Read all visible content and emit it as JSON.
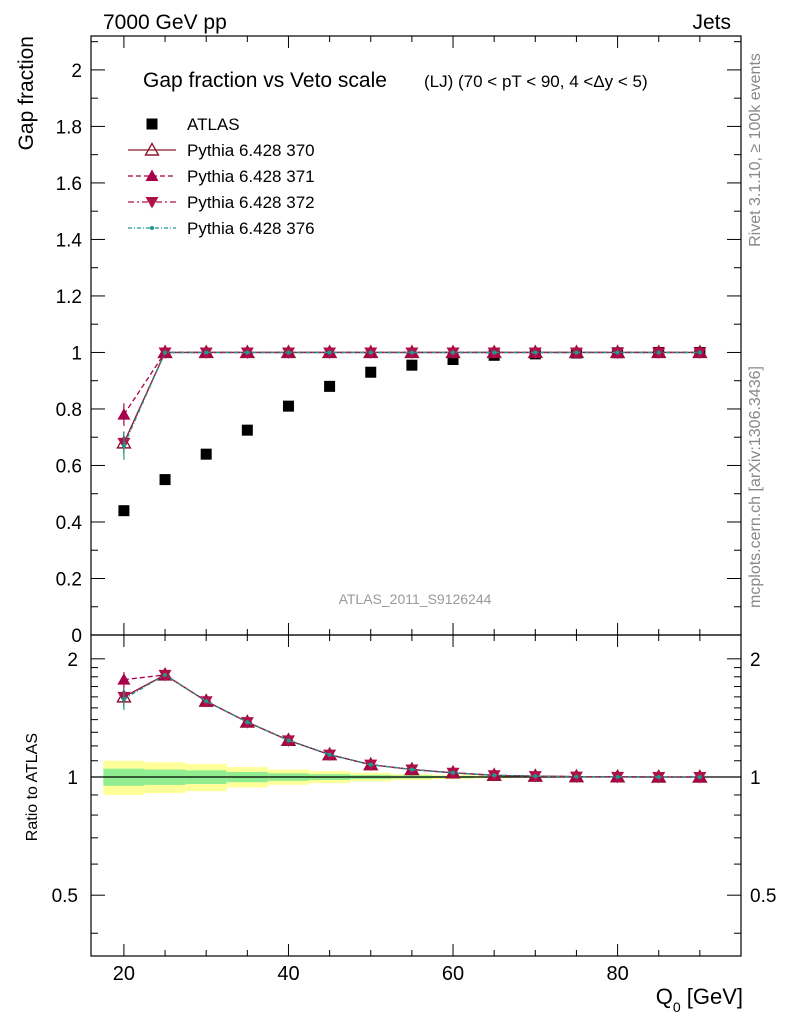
{
  "header": {
    "left": "7000 GeV pp",
    "right": "Jets",
    "side_top": "Rivet 3.1.10, ≥ 100k events",
    "side_bottom": "mcplots.cern.ch [arXiv:1306.3436]"
  },
  "chart_data": {
    "type": "scatter",
    "title": "Gap fraction vs Veto scale",
    "subtitle": "(LJ) (70 < pT <  90, 4 <Δy < 5)",
    "watermark": "ATLAS_2011_S9126244",
    "xlabel": "Q0 [GeV]",
    "ylabel": "Gap fraction",
    "ratio_ylabel": "Ratio to ATLAS",
    "xlim": [
      16,
      95
    ],
    "ylim": [
      0,
      2.12
    ],
    "ratio_ylim": [
      0.35,
      2.3
    ],
    "x_ticks": [
      20,
      40,
      60,
      80
    ],
    "y_ticks": [
      0,
      0.2,
      0.4,
      0.6,
      0.8,
      1,
      1.2,
      1.4,
      1.6,
      1.8,
      2
    ],
    "y_tick_labels": [
      "0",
      "0.2",
      "0.4",
      "0.6",
      "0.8",
      "1",
      "1.2",
      "1.4",
      "1.6",
      "1.8",
      "2"
    ],
    "ratio_ticks": [
      0.5,
      1,
      2
    ],
    "ratio_tick_labels": [
      "0.5",
      "1",
      "2"
    ],
    "x": [
      20,
      25,
      30,
      35,
      40,
      45,
      50,
      55,
      60,
      65,
      70,
      75,
      80,
      85,
      90
    ],
    "legend_position": "top-left",
    "series": [
      {
        "name": "ATLAS",
        "marker": "square",
        "color": "#000000",
        "values": [
          0.44,
          0.55,
          0.64,
          0.725,
          0.81,
          0.88,
          0.93,
          0.955,
          0.975,
          0.99,
          0.995,
          0.998,
          0.999,
          1.0,
          1.0
        ]
      },
      {
        "name": "Pythia 6.428 370",
        "marker": "triangle-open",
        "color": "#8b1a2e",
        "dash": "",
        "values": [
          0.68,
          1.0,
          1.0,
          1.0,
          1.0,
          1.0,
          1.0,
          1.0,
          1.0,
          1.0,
          1.0,
          1.0,
          1.0,
          1.0,
          1.0
        ],
        "errors": [
          0.04,
          0,
          0,
          0,
          0,
          0,
          0,
          0,
          0,
          0,
          0,
          0,
          0,
          0,
          0
        ],
        "ratio": [
          1.6,
          1.82,
          1.56,
          1.38,
          1.24,
          1.14,
          1.075,
          1.045,
          1.025,
          1.01,
          1.005,
          1.002,
          1.001,
          1.0,
          1.0
        ],
        "ratio_errors": [
          0.09,
          0,
          0,
          0,
          0,
          0,
          0,
          0,
          0,
          0,
          0,
          0,
          0,
          0,
          0
        ]
      },
      {
        "name": "Pythia 6.428 371",
        "marker": "triangle-up",
        "color": "#a8004a",
        "dash": "5,3",
        "values": [
          0.78,
          1.0,
          1.0,
          1.0,
          1.0,
          1.0,
          1.0,
          1.0,
          1.0,
          1.0,
          1.0,
          1.0,
          1.0,
          1.0,
          1.0
        ],
        "errors": [
          0.04,
          0,
          0,
          0,
          0,
          0,
          0,
          0,
          0,
          0,
          0,
          0,
          0,
          0,
          0
        ],
        "ratio": [
          1.77,
          1.82,
          1.56,
          1.38,
          1.24,
          1.14,
          1.075,
          1.045,
          1.025,
          1.01,
          1.005,
          1.002,
          1.001,
          1.0,
          1.0
        ],
        "ratio_errors": [
          0.08,
          0,
          0,
          0,
          0,
          0,
          0,
          0,
          0,
          0,
          0,
          0,
          0,
          0,
          0
        ]
      },
      {
        "name": "Pythia 6.428 372",
        "marker": "triangle-down",
        "color": "#b0104a",
        "dash": "6,3,2,3",
        "values": [
          0.68,
          1.0,
          1.0,
          1.0,
          1.0,
          1.0,
          1.0,
          1.0,
          1.0,
          1.0,
          1.0,
          1.0,
          1.0,
          1.0,
          1.0
        ],
        "errors": [
          0.04,
          0,
          0,
          0,
          0,
          0,
          0,
          0,
          0,
          0,
          0,
          0,
          0,
          0,
          0
        ],
        "ratio": [
          1.6,
          1.82,
          1.56,
          1.38,
          1.24,
          1.14,
          1.075,
          1.045,
          1.025,
          1.01,
          1.005,
          1.002,
          1.001,
          1.0,
          1.0
        ],
        "ratio_errors": [
          0.09,
          0,
          0,
          0,
          0,
          0,
          0,
          0,
          0,
          0,
          0,
          0,
          0,
          0,
          0
        ]
      },
      {
        "name": "Pythia 6.428 376",
        "marker": "dot",
        "color": "#1a9c8c",
        "dash": "4,2,1,2",
        "values": [
          0.67,
          1.0,
          1.0,
          1.0,
          1.0,
          1.0,
          1.0,
          1.0,
          1.0,
          1.0,
          1.0,
          1.0,
          1.0,
          1.0,
          1.0
        ],
        "errors": [
          0.05,
          0,
          0,
          0,
          0,
          0,
          0,
          0,
          0,
          0,
          0,
          0,
          0,
          0,
          0
        ],
        "ratio": [
          1.58,
          1.82,
          1.56,
          1.38,
          1.24,
          1.14,
          1.075,
          1.045,
          1.025,
          1.01,
          1.005,
          1.002,
          1.001,
          1.0,
          1.0
        ],
        "ratio_errors": [
          0.1,
          0,
          0,
          0,
          0,
          0,
          0,
          0,
          0,
          0,
          0,
          0,
          0,
          0,
          0
        ]
      }
    ],
    "ratio_bands": {
      "bin_edges": [
        17.5,
        22.5,
        27.5,
        32.5,
        37.5,
        42.5,
        47.5,
        52.5,
        57.5,
        62.5,
        67.5,
        72.5,
        77.5,
        82.5,
        87.5,
        92.5
      ],
      "stat_halfwidth": [
        0.05,
        0.045,
        0.04,
        0.03,
        0.022,
        0.017,
        0.012,
        0.009,
        0.006,
        0.004,
        0.003,
        0.002,
        0.0015,
        0.001,
        0.001
      ],
      "total_halfwidth": [
        0.1,
        0.09,
        0.08,
        0.06,
        0.045,
        0.035,
        0.025,
        0.018,
        0.012,
        0.008,
        0.005,
        0.004,
        0.003,
        0.002,
        0.002
      ],
      "stat_color": "#90ee90",
      "total_color": "#ffff99"
    }
  }
}
